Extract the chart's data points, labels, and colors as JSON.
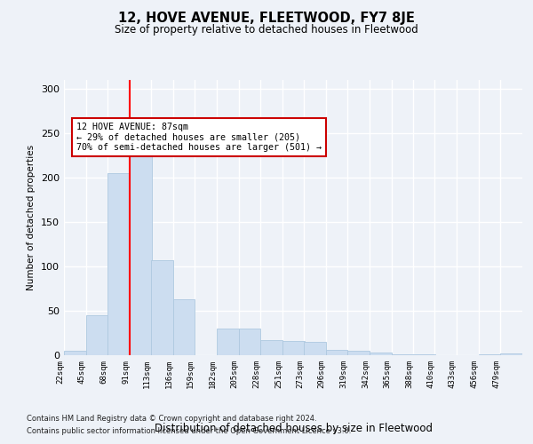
{
  "title": "12, HOVE AVENUE, FLEETWOOD, FY7 8JE",
  "subtitle": "Size of property relative to detached houses in Fleetwood",
  "xlabel": "Distribution of detached houses by size in Fleetwood",
  "ylabel": "Number of detached properties",
  "bar_color": "#ccddf0",
  "bar_edge_color": "#aec8e0",
  "background_color": "#eef2f8",
  "grid_color": "#ffffff",
  "redline_x": 91,
  "annotation_text": "12 HOVE AVENUE: 87sqm\n← 29% of detached houses are smaller (205)\n70% of semi-detached houses are larger (501) →",
  "annotation_box_color": "#ffffff",
  "annotation_box_edge": "#cc0000",
  "footnote1": "Contains HM Land Registry data © Crown copyright and database right 2024.",
  "footnote2": "Contains public sector information licensed under the Open Government Licence v3.0.",
  "bin_edges": [
    22,
    45,
    68,
    91,
    113,
    136,
    159,
    182,
    205,
    228,
    251,
    273,
    296,
    319,
    342,
    365,
    388,
    410,
    433,
    456,
    479,
    502
  ],
  "bin_labels": [
    "22sqm",
    "45sqm",
    "68sqm",
    "91sqm",
    "113sqm",
    "136sqm",
    "159sqm",
    "182sqm",
    "205sqm",
    "228sqm",
    "251sqm",
    "273sqm",
    "296sqm",
    "319sqm",
    "342sqm",
    "365sqm",
    "388sqm",
    "410sqm",
    "433sqm",
    "456sqm",
    "479sqm"
  ],
  "bar_heights": [
    5,
    45,
    205,
    228,
    107,
    63,
    0,
    30,
    30,
    17,
    16,
    15,
    6,
    5,
    3,
    1,
    1,
    0,
    0,
    1,
    2
  ],
  "ylim": [
    0,
    310
  ],
  "xlim": [
    22,
    502
  ],
  "yticks": [
    0,
    50,
    100,
    150,
    200,
    250,
    300
  ]
}
